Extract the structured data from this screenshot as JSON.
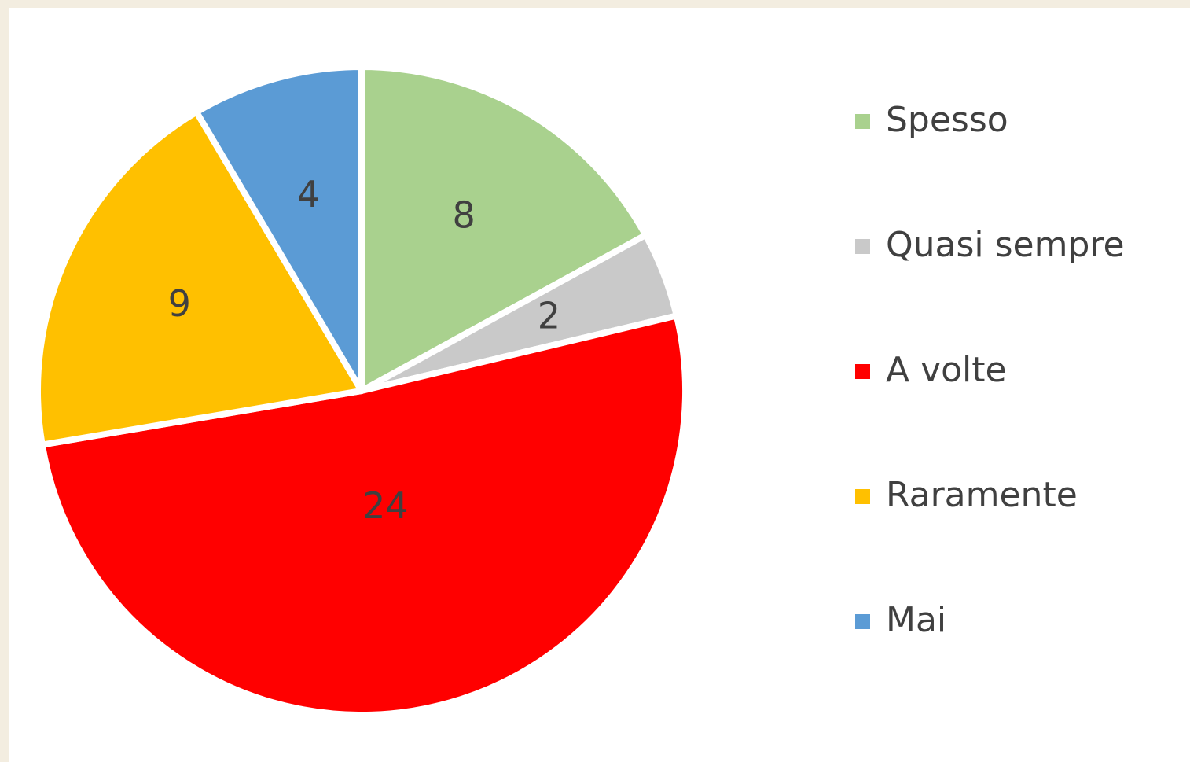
{
  "chart_data": {
    "type": "pie",
    "categories": [
      "Spesso",
      "Quasi sempre",
      "A volte",
      "Raramente",
      "Mai"
    ],
    "values": [
      8,
      2,
      24,
      9,
      4
    ],
    "colors": [
      "#a9d18e",
      "#c9c9c9",
      "#ff0000",
      "#ffc000",
      "#5b9bd5"
    ],
    "legend": "right"
  }
}
